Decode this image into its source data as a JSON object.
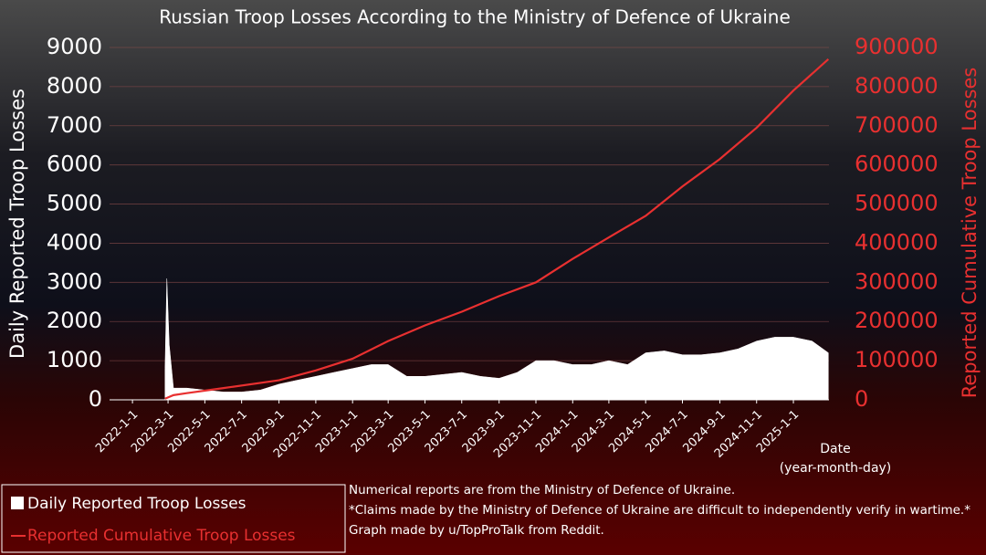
{
  "chart_data": {
    "type": "area-line",
    "title": "Russian Troop Losses According to the Ministry of Defence of Ukraine",
    "y_label": "Daily Reported Troop Losses",
    "y2_label": "Reported Cumulative Troop Losses",
    "x_label": "Date\n(year-month-day)",
    "notes": [
      "Numerical reports are from the Ministry of Defence of Ukraine.",
      "*Claims made by the Ministry of Defence of Ukraine are difficult to independently verify in wartime.*",
      "Graph made by u/TopProTalk from Reddit."
    ],
    "legend": "bottom-left",
    "grid": true,
    "xlim": [
      "2021-11-24",
      "2025-3-1"
    ],
    "xticks": [
      "2022-1-1",
      "2022-3-1",
      "2022-5-1",
      "2022-7-1",
      "2022-9-1",
      "2022-11-1",
      "2023-1-1",
      "2023-3-1",
      "2023-5-1",
      "2023-7-1",
      "2023-9-1",
      "2023-11-1",
      "2024-1-1",
      "2024-3-1",
      "2024-5-1",
      "2024-7-1",
      "2024-9-1",
      "2024-11-1",
      "2025-1-1"
    ],
    "ylim": [
      0,
      9000
    ],
    "yticks": [
      0,
      1000,
      2000,
      3000,
      4000,
      5000,
      6000,
      7000,
      8000,
      9000
    ],
    "y2lim": [
      0,
      900000
    ],
    "y2ticks": [
      0,
      100000,
      200000,
      300000,
      400000,
      500000,
      600000,
      700000,
      800000,
      900000
    ],
    "series": [
      {
        "name": "Daily Reported Troop Losses",
        "color": "#ffffff",
        "x": [
          "2022-2-24",
          "2022-2-27",
          "2022-3-3",
          "2022-3-10",
          "2022-4-1",
          "2022-5-1",
          "2022-6-1",
          "2022-7-1",
          "2022-8-1",
          "2022-9-1",
          "2022-10-1",
          "2022-11-1",
          "2022-12-1",
          "2023-1-1",
          "2023-2-1",
          "2023-3-1",
          "2023-4-1",
          "2023-5-1",
          "2023-6-1",
          "2023-7-1",
          "2023-8-1",
          "2023-9-1",
          "2023-10-1",
          "2023-11-1",
          "2023-12-1",
          "2024-1-1",
          "2024-2-1",
          "2024-3-1",
          "2024-4-1",
          "2024-5-1",
          "2024-6-1",
          "2024-7-1",
          "2024-8-1",
          "2024-9-1",
          "2024-10-1",
          "2024-11-1",
          "2024-12-1",
          "2025-1-1",
          "2025-2-1",
          "2025-2-28"
        ],
        "values": [
          800,
          3100,
          1400,
          300,
          300,
          250,
          200,
          200,
          250,
          400,
          500,
          600,
          700,
          800,
          900,
          900,
          600,
          600,
          650,
          700,
          600,
          550,
          700,
          1000,
          1000,
          900,
          900,
          1000,
          900,
          1200,
          1250,
          1150,
          1150,
          1200,
          1300,
          1500,
          1600,
          1600,
          1500,
          1200
        ]
      },
      {
        "name": "Reported Cumulative Troop Losses",
        "color": "#e83030",
        "axis": "y2",
        "x": [
          "2022-2-24",
          "2022-3-10",
          "2022-4-1",
          "2022-6-1",
          "2022-9-1",
          "2022-11-1",
          "2023-1-1",
          "2023-3-1",
          "2023-5-1",
          "2023-7-1",
          "2023-9-1",
          "2023-11-1",
          "2024-1-1",
          "2024-3-1",
          "2024-5-1",
          "2024-7-1",
          "2024-9-1",
          "2024-11-1",
          "2025-1-1",
          "2025-2-28"
        ],
        "values": [
          3000,
          12000,
          17000,
          30000,
          50000,
          75000,
          105000,
          150000,
          190000,
          225000,
          265000,
          300000,
          360000,
          415000,
          470000,
          545000,
          615000,
          695000,
          790000,
          870000
        ]
      }
    ]
  }
}
